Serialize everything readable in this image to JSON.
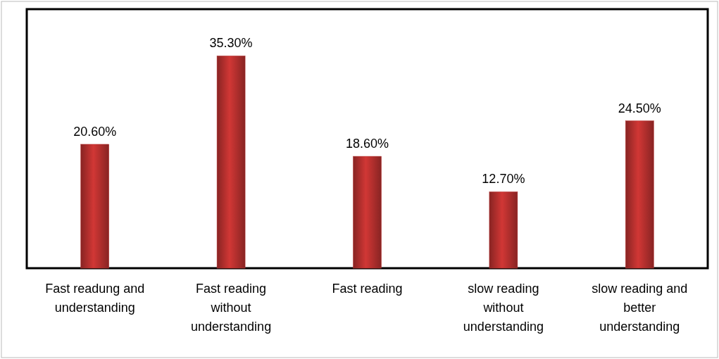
{
  "chart_data": {
    "type": "bar",
    "categories": [
      "Fast readung and\nunderstanding",
      "Fast reading\nwithout\nunderstanding",
      "Fast reading",
      "slow reading\nwithout\nunderstanding",
      "slow reading and\nbetter\nunderstanding"
    ],
    "values": [
      20.6,
      35.3,
      18.6,
      12.7,
      24.5
    ],
    "value_labels": [
      "20.60%",
      "35.30%",
      "18.60%",
      "12.70%",
      "24.50%"
    ],
    "color": "#b5302e"
  }
}
